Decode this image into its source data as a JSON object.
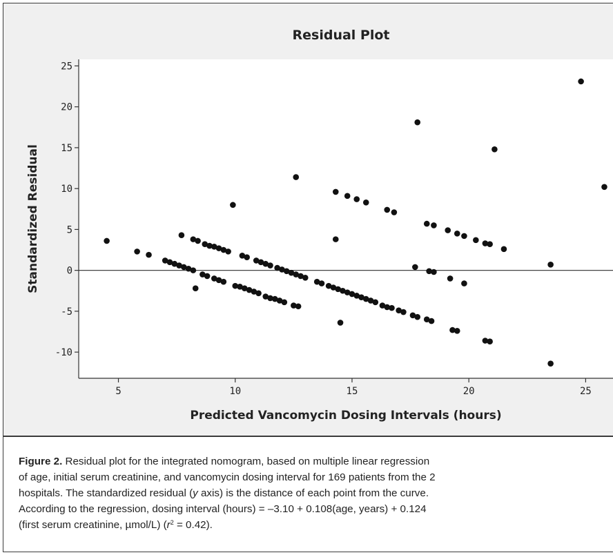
{
  "chart_data": {
    "type": "scatter",
    "title": "Residual Plot",
    "xlabel": "Predicted Vancomycin Dosing Intervals (hours)",
    "ylabel": "Standardized Residual",
    "xlim": [
      3.3,
      26.2
    ],
    "ylim": [
      -13.2,
      25.8
    ],
    "x_ticks": [
      5,
      10,
      15,
      20,
      25
    ],
    "y_ticks": [
      -10,
      -5,
      0,
      5,
      10,
      15,
      20,
      25
    ],
    "x_tick_labels": [
      "5",
      "10",
      "15",
      "20",
      "25"
    ],
    "y_tick_labels": [
      "-10",
      "-5",
      "0",
      "5",
      "10",
      "15",
      "20",
      "25"
    ],
    "reference_line": 0,
    "grid": false,
    "colors": {
      "background": "#f0f0f0",
      "points": "#111111",
      "axes": "#333333"
    },
    "points": [
      [
        4.5,
        3.6
      ],
      [
        5.8,
        2.3
      ],
      [
        6.3,
        1.9
      ],
      [
        7.0,
        1.2
      ],
      [
        7.2,
        1.0
      ],
      [
        7.4,
        0.8
      ],
      [
        7.6,
        0.6
      ],
      [
        7.8,
        0.4
      ],
      [
        8.0,
        0.2
      ],
      [
        8.2,
        0.0
      ],
      [
        8.6,
        -0.5
      ],
      [
        8.8,
        -0.7
      ],
      [
        9.1,
        -1.0
      ],
      [
        9.3,
        -1.2
      ],
      [
        9.5,
        -1.4
      ],
      [
        10.0,
        -1.9
      ],
      [
        10.2,
        -2.0
      ],
      [
        10.4,
        -2.2
      ],
      [
        10.6,
        -2.4
      ],
      [
        10.8,
        -2.6
      ],
      [
        11.0,
        -2.8
      ],
      [
        11.3,
        -3.2
      ],
      [
        11.5,
        -3.4
      ],
      [
        11.7,
        -3.5
      ],
      [
        11.9,
        -3.7
      ],
      [
        12.1,
        -3.9
      ],
      [
        12.5,
        -4.3
      ],
      [
        12.7,
        -4.4
      ],
      [
        8.3,
        -2.2
      ],
      [
        7.7,
        4.3
      ],
      [
        8.2,
        3.8
      ],
      [
        8.4,
        3.6
      ],
      [
        8.7,
        3.2
      ],
      [
        8.9,
        3.0
      ],
      [
        9.1,
        2.9
      ],
      [
        9.3,
        2.7
      ],
      [
        9.5,
        2.5
      ],
      [
        9.7,
        2.3
      ],
      [
        10.3,
        1.8
      ],
      [
        10.5,
        1.6
      ],
      [
        10.9,
        1.2
      ],
      [
        11.1,
        1.0
      ],
      [
        11.3,
        0.8
      ],
      [
        11.5,
        0.6
      ],
      [
        11.8,
        0.3
      ],
      [
        12.0,
        0.1
      ],
      [
        12.2,
        -0.1
      ],
      [
        12.4,
        -0.3
      ],
      [
        12.6,
        -0.5
      ],
      [
        12.8,
        -0.7
      ],
      [
        13.0,
        -0.9
      ],
      [
        13.5,
        -1.4
      ],
      [
        13.7,
        -1.6
      ],
      [
        14.0,
        -1.9
      ],
      [
        14.2,
        -2.1
      ],
      [
        14.4,
        -2.3
      ],
      [
        14.6,
        -2.5
      ],
      [
        14.8,
        -2.7
      ],
      [
        15.0,
        -2.9
      ],
      [
        15.2,
        -3.1
      ],
      [
        15.4,
        -3.3
      ],
      [
        15.6,
        -3.5
      ],
      [
        15.8,
        -3.7
      ],
      [
        16.0,
        -3.9
      ],
      [
        16.3,
        -4.3
      ],
      [
        16.5,
        -4.5
      ],
      [
        16.7,
        -4.6
      ],
      [
        17.0,
        -4.9
      ],
      [
        17.2,
        -5.1
      ],
      [
        17.6,
        -5.5
      ],
      [
        17.8,
        -5.7
      ],
      [
        18.2,
        -6.0
      ],
      [
        18.4,
        -6.2
      ],
      [
        19.3,
        -7.3
      ],
      [
        19.5,
        -7.4
      ],
      [
        20.7,
        -8.6
      ],
      [
        20.9,
        -8.7
      ],
      [
        23.5,
        -11.4
      ],
      [
        9.9,
        8.0
      ],
      [
        12.6,
        11.4
      ],
      [
        14.3,
        3.8
      ],
      [
        14.5,
        -6.4
      ],
      [
        14.3,
        9.6
      ],
      [
        14.8,
        9.1
      ],
      [
        15.2,
        8.7
      ],
      [
        15.6,
        8.3
      ],
      [
        16.5,
        7.4
      ],
      [
        16.8,
        7.1
      ],
      [
        18.2,
        5.7
      ],
      [
        18.5,
        5.5
      ],
      [
        19.1,
        4.9
      ],
      [
        19.5,
        4.5
      ],
      [
        19.8,
        4.2
      ],
      [
        20.3,
        3.7
      ],
      [
        20.7,
        3.3
      ],
      [
        20.9,
        3.2
      ],
      [
        21.5,
        2.6
      ],
      [
        17.7,
        0.4
      ],
      [
        18.3,
        -0.1
      ],
      [
        18.5,
        -0.2
      ],
      [
        19.2,
        -1.0
      ],
      [
        19.8,
        -1.6
      ],
      [
        17.8,
        18.1
      ],
      [
        21.1,
        14.8
      ],
      [
        23.5,
        0.7
      ],
      [
        24.8,
        23.1
      ],
      [
        25.8,
        10.2
      ]
    ]
  },
  "caption": {
    "label": "Figure 2.",
    "line1": " Residual plot for the integrated nomogram, based on multiple linear regression",
    "line2": "of age, initial serum creatinine, and vancomycin dosing interval for 169 patients from the 2",
    "line3a": "hospitals. The standardized residual (",
    "line3_var": "y",
    "line3b": " axis) is the distance of each point from the curve.",
    "line4": "According to the regression, dosing interval (hours) = –3.10 + 0.108(age, years) + 0.124",
    "line5a": "(first serum creatinine, µmol/L) (",
    "line5_var": "r",
    "line5_sup": "2",
    "line5b": " = 0.42)."
  }
}
